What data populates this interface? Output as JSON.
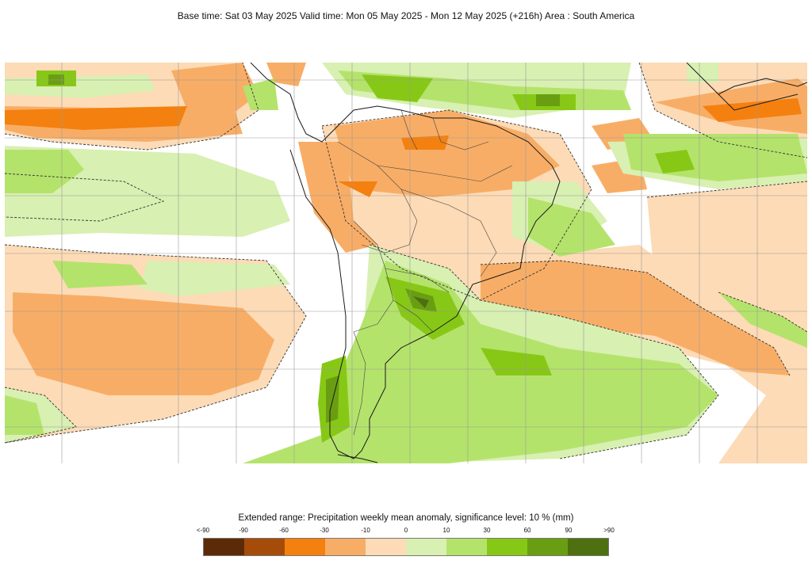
{
  "header": {
    "title": "Base time: Sat 03 May 2025 Valid time: Mon 05 May 2025 - Mon 12 May 2025 (+216h) Area : South America"
  },
  "legend": {
    "title": "Extended range: Precipitation weekly mean anomaly, significance level: 10 % (mm)",
    "labels": [
      "<-90",
      "-90",
      "-60",
      "-30",
      "-10",
      "0",
      "10",
      "30",
      "60",
      "90",
      ">90"
    ],
    "colors": [
      "#5c2a06",
      "#a64c0a",
      "#f4800f",
      "#f8ad66",
      "#fddbb6",
      "#d8f0b2",
      "#b4e36b",
      "#87c816",
      "#6a9e12",
      "#4e7010"
    ]
  },
  "map": {
    "icons": [
      "coastline-lines",
      "country-border-lines",
      "lat-lon-grid",
      "significance-dashed-contours"
    ]
  }
}
